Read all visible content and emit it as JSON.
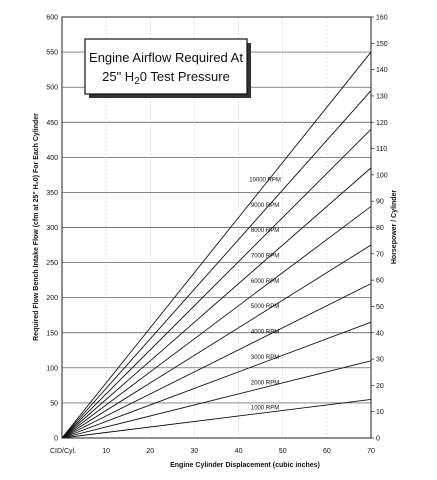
{
  "chart_data": {
    "type": "line",
    "title_line1": "Engine Airflow Required At",
    "title_line2_prefix": "25\" H",
    "title_line2_sub": "2",
    "title_line2_suffix": "0 Test Pressure",
    "xlabel": "Engine Cylinder Displacement (cubic inches)",
    "ylabel_left": "Required Flow Bench Intake Flow (cfm at 25\" H₂0) For Each Cylinder",
    "ylabel_right": "Horsepower / Cylinder",
    "x_corner_label": "CID/Cyl.",
    "xlim": [
      0,
      70
    ],
    "ylim_left": [
      0,
      600
    ],
    "ylim_right": [
      0,
      160
    ],
    "x_ticks": [
      "10",
      "20",
      "30",
      "40",
      "50",
      "60",
      "70"
    ],
    "y_ticks_left": [
      "0",
      "50",
      "100",
      "150",
      "200",
      "250",
      "300",
      "350",
      "400",
      "450",
      "500",
      "550",
      "600"
    ],
    "y_ticks_right": [
      "0",
      "10",
      "20",
      "30",
      "40",
      "50",
      "60",
      "70",
      "80",
      "90",
      "100",
      "110",
      "120",
      "130",
      "140",
      "150",
      "160"
    ],
    "series": [
      {
        "name": "1000 RPM",
        "x": [
          0,
          70
        ],
        "y": [
          0,
          55
        ]
      },
      {
        "name": "2000 RPM",
        "x": [
          0,
          70
        ],
        "y": [
          0,
          110
        ]
      },
      {
        "name": "3000 RPM",
        "x": [
          0,
          70
        ],
        "y": [
          0,
          165
        ]
      },
      {
        "name": "4000 RPM",
        "x": [
          0,
          70
        ],
        "y": [
          0,
          220
        ]
      },
      {
        "name": "5000 RPM",
        "x": [
          0,
          70
        ],
        "y": [
          0,
          275
        ]
      },
      {
        "name": "6000 RPM",
        "x": [
          0,
          70
        ],
        "y": [
          0,
          330
        ]
      },
      {
        "name": "7000 RPM",
        "x": [
          0,
          70
        ],
        "y": [
          0,
          385
        ]
      },
      {
        "name": "8000 RPM",
        "x": [
          0,
          70
        ],
        "y": [
          0,
          440
        ]
      },
      {
        "name": "9000 RPM",
        "x": [
          0,
          70
        ],
        "y": [
          0,
          495
        ]
      },
      {
        "name": "10000 RPM",
        "x": [
          0,
          70
        ],
        "y": [
          0,
          550
        ]
      }
    ],
    "series_label_x": 46,
    "grid": true
  }
}
